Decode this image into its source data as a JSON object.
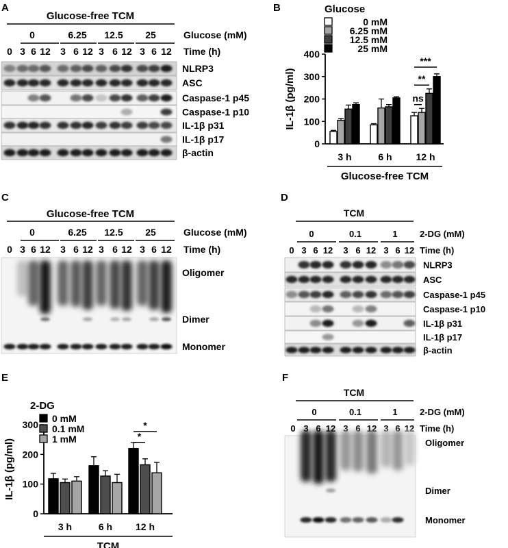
{
  "panels": {
    "A": {
      "letter": "A",
      "header": "Glucose-free TCM",
      "group_label": "Glucose (mM)",
      "groups": [
        "0",
        "6.25",
        "12.5",
        "25"
      ],
      "time_label": "Time (h)",
      "times": [
        "0",
        "3",
        "6",
        "12",
        "3",
        "6",
        "12",
        "3",
        "6",
        "12",
        "3",
        "6",
        "12"
      ],
      "bands": [
        "NLRP3",
        "ASC",
        "Caspase-1 p45",
        "Caspase-1 p10",
        "IL-1β p31",
        "IL-1β p17",
        "β-actin"
      ]
    },
    "C": {
      "letter": "C",
      "header": "Glucose-free TCM",
      "group_label": "Glucose (mM)",
      "groups": [
        "0",
        "6.25",
        "12.5",
        "25"
      ],
      "time_label": "Time (h)",
      "times": [
        "0",
        "3",
        "6",
        "12",
        "3",
        "6",
        "12",
        "3",
        "6",
        "12",
        "3",
        "6",
        "12"
      ],
      "bands": [
        "Oligomer",
        "Dimer",
        "Monomer"
      ]
    },
    "D": {
      "letter": "D",
      "header": "TCM",
      "group_label": "2-DG (mM)",
      "groups": [
        "0",
        "0.1",
        "1"
      ],
      "time_label": "Time (h)",
      "times": [
        "0",
        "3",
        "6",
        "12",
        "3",
        "6",
        "12",
        "3",
        "6",
        "12"
      ],
      "bands": [
        "NLRP3",
        "ASC",
        "Caspase-1 p45",
        "Caspase-1 p10",
        "IL-1β p31",
        "IL-1β p17",
        "β-actin"
      ]
    },
    "F": {
      "letter": "F",
      "header": "TCM",
      "group_label": "2-DG (mM)",
      "groups": [
        "0",
        "0.1",
        "1"
      ],
      "time_label": "Time (h)",
      "times": [
        "0",
        "3",
        "6",
        "12",
        "3",
        "6",
        "12",
        "3",
        "6",
        "12"
      ],
      "bands": [
        "Oligomer",
        "Dimer",
        "Monomer"
      ]
    }
  },
  "chart_data": [
    {
      "id": "B",
      "letter": "B",
      "type": "bar",
      "legend_title": "Glucose",
      "categories": [
        "3 h",
        "6 h",
        "12 h"
      ],
      "xlabel": "Glucose-free TCM",
      "ylabel": "IL-1β (pg/ml)",
      "ylim": [
        0,
        400
      ],
      "yticks": [
        "0",
        "100",
        "200",
        "300",
        "400"
      ],
      "series": [
        {
          "name": "0 mM",
          "color": "#ffffff",
          "values": [
            55,
            85,
            125
          ],
          "errors": [
            5,
            5,
            15
          ]
        },
        {
          "name": "6.25 mM",
          "color": "#a6a6a6",
          "values": [
            105,
            160,
            140
          ],
          "errors": [
            8,
            40,
            18
          ]
        },
        {
          "name": "12.5 mM",
          "color": "#3f3f3f",
          "values": [
            155,
            165,
            225
          ],
          "errors": [
            18,
            10,
            20
          ]
        },
        {
          "name": "25 mM",
          "color": "#000000",
          "values": [
            175,
            205,
            300
          ],
          "errors": [
            8,
            5,
            12
          ]
        }
      ],
      "significance": [
        "ns",
        "**",
        "***"
      ]
    },
    {
      "id": "E",
      "letter": "E",
      "type": "bar",
      "legend_title": "2-DG",
      "categories": [
        "3 h",
        "6 h",
        "12 h"
      ],
      "xlabel": "TCM",
      "ylabel": "IL-1β (pg/ml)",
      "ylim": [
        0,
        300
      ],
      "yticks": [
        "0",
        "100",
        "200",
        "300"
      ],
      "series": [
        {
          "name": "0 mM",
          "color": "#000000",
          "values": [
            118,
            162,
            220
          ],
          "errors": [
            18,
            30,
            20
          ]
        },
        {
          "name": "0.1 mM",
          "color": "#4d4d4d",
          "values": [
            105,
            127,
            165
          ],
          "errors": [
            12,
            18,
            20
          ]
        },
        {
          "name": "1 mM",
          "color": "#a6a6a6",
          "values": [
            110,
            105,
            138
          ],
          "errors": [
            15,
            28,
            35
          ]
        }
      ],
      "significance": [
        "*",
        "*"
      ]
    }
  ]
}
